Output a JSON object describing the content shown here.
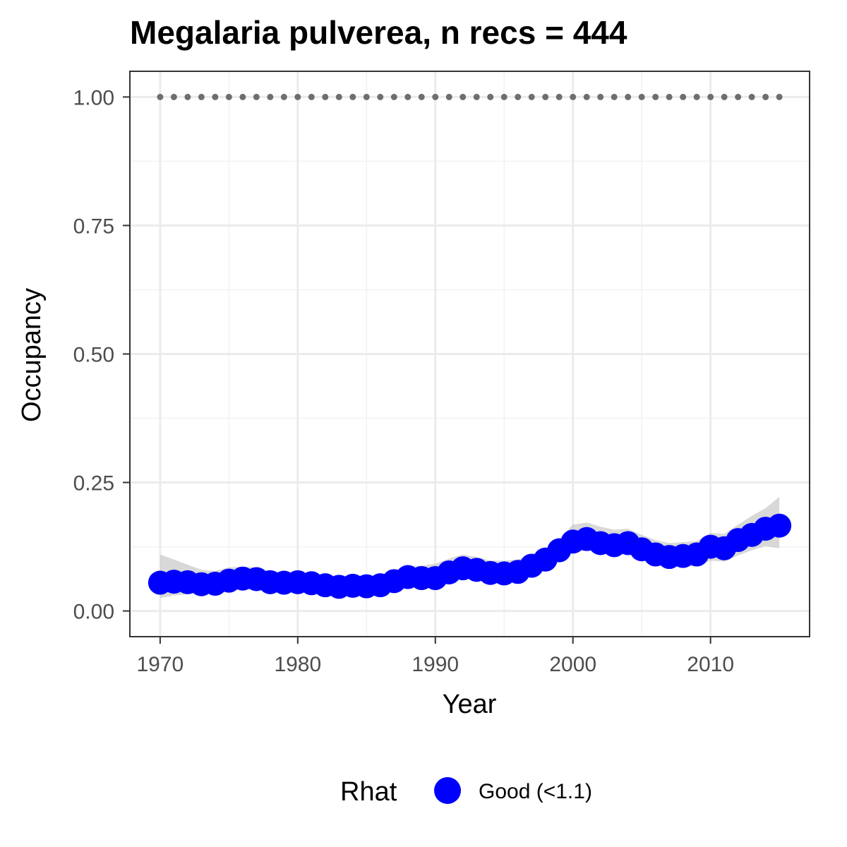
{
  "chart_data": {
    "type": "line",
    "title": "Megalaria pulverea, n recs = 444",
    "xlabel": "Year",
    "ylabel": "Occupancy",
    "xlim": [
      1967.8,
      2017.2
    ],
    "ylim": [
      -0.05,
      1.05
    ],
    "x_ticks": [
      1970,
      1980,
      1990,
      2000,
      2010
    ],
    "x_tick_labels": [
      "1970",
      "1980",
      "1990",
      "2000",
      "2010"
    ],
    "y_ticks": [
      0,
      0.25,
      0.5,
      0.75,
      1.0
    ],
    "y_tick_labels": [
      "0.00",
      "0.25",
      "0.50",
      "0.75",
      "1.00"
    ],
    "grid": true,
    "legend": {
      "position": "bottom",
      "title": "Rhat",
      "entries": [
        {
          "label": "Good (<1.1)",
          "color": "#0000ff"
        }
      ]
    },
    "colors": {
      "points": "#0000ff",
      "ribbon": "#bebebe",
      "reference": "#6e6e6e"
    },
    "x": [
      1970,
      1971,
      1972,
      1973,
      1974,
      1975,
      1976,
      1977,
      1978,
      1979,
      1980,
      1981,
      1982,
      1983,
      1984,
      1985,
      1986,
      1987,
      1988,
      1989,
      1990,
      1991,
      1992,
      1993,
      1994,
      1995,
      1996,
      1997,
      1998,
      1999,
      2000,
      2001,
      2002,
      2003,
      2004,
      2005,
      2006,
      2007,
      2008,
      2009,
      2010,
      2011,
      2012,
      2013,
      2014,
      2015
    ],
    "series": [
      {
        "values": [
          0.055,
          0.057,
          0.056,
          0.052,
          0.053,
          0.059,
          0.063,
          0.062,
          0.056,
          0.055,
          0.056,
          0.054,
          0.05,
          0.047,
          0.049,
          0.048,
          0.05,
          0.058,
          0.066,
          0.064,
          0.064,
          0.075,
          0.083,
          0.08,
          0.074,
          0.073,
          0.076,
          0.088,
          0.1,
          0.118,
          0.135,
          0.14,
          0.132,
          0.128,
          0.132,
          0.12,
          0.11,
          0.105,
          0.107,
          0.11,
          0.125,
          0.122,
          0.138,
          0.148,
          0.16,
          0.166
        ]
      }
    ],
    "ribbon": {
      "lower": [
        0.025,
        0.03,
        0.033,
        0.036,
        0.037,
        0.04,
        0.042,
        0.042,
        0.04,
        0.04,
        0.04,
        0.038,
        0.035,
        0.032,
        0.033,
        0.033,
        0.036,
        0.042,
        0.048,
        0.05,
        0.052,
        0.058,
        0.064,
        0.062,
        0.058,
        0.058,
        0.06,
        0.07,
        0.082,
        0.1,
        0.112,
        0.118,
        0.112,
        0.11,
        0.11,
        0.1,
        0.09,
        0.085,
        0.086,
        0.088,
        0.098,
        0.096,
        0.108,
        0.118,
        0.126,
        0.122
      ],
      "upper": [
        0.11,
        0.1,
        0.09,
        0.08,
        0.078,
        0.085,
        0.086,
        0.085,
        0.078,
        0.075,
        0.074,
        0.071,
        0.066,
        0.063,
        0.065,
        0.064,
        0.068,
        0.078,
        0.088,
        0.088,
        0.092,
        0.102,
        0.11,
        0.105,
        0.098,
        0.098,
        0.1,
        0.11,
        0.12,
        0.14,
        0.168,
        0.172,
        0.164,
        0.158,
        0.16,
        0.148,
        0.138,
        0.132,
        0.134,
        0.136,
        0.152,
        0.15,
        0.168,
        0.185,
        0.2,
        0.222
      ]
    },
    "reference_line": {
      "y": 1.0
    }
  }
}
